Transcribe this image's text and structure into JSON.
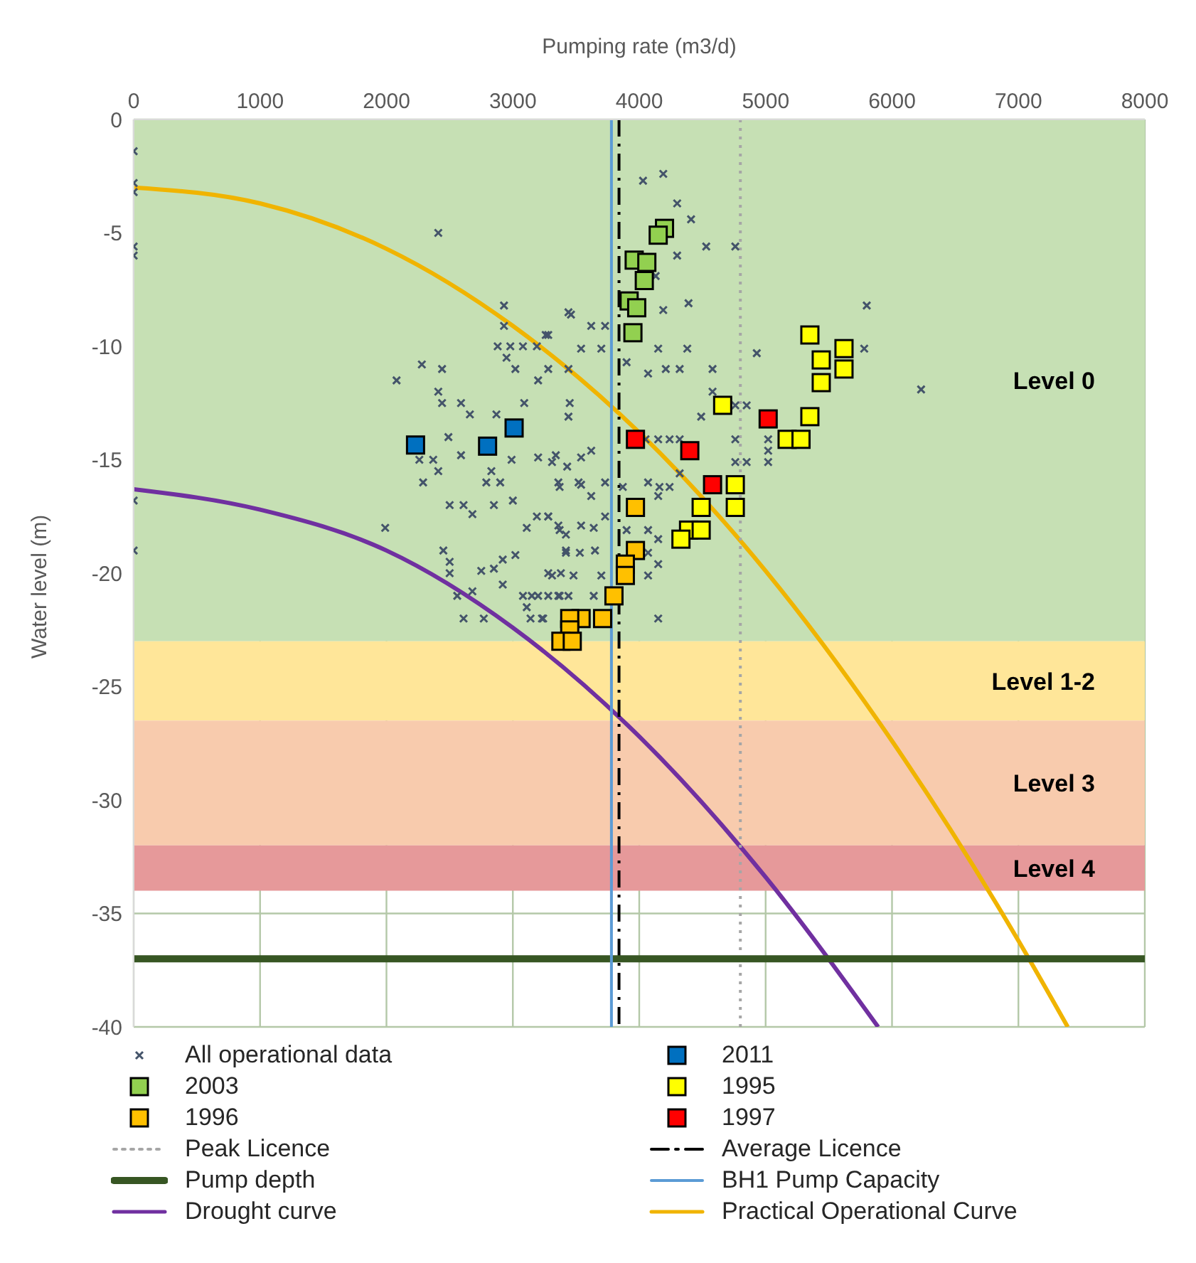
{
  "chart_data": {
    "type": "scatter",
    "xlabel": "Pumping rate (m3/d)",
    "ylabel": "Water level (m)",
    "xlim": [
      0,
      8000
    ],
    "xticks": [
      0,
      1000,
      2000,
      3000,
      4000,
      5000,
      6000,
      7000,
      8000
    ],
    "ylim": [
      -40,
      0
    ],
    "yticks": [
      0,
      -5,
      -10,
      -15,
      -20,
      -25,
      -30,
      -35,
      -40
    ],
    "grid": true,
    "legend": "bottom",
    "bands": [
      {
        "axis": "y",
        "from": 0,
        "to": -23,
        "label": "Level 0",
        "color": "#c6e0b4"
      },
      {
        "axis": "y",
        "from": -23,
        "to": -26.5,
        "label": "Level 1-2",
        "color": "#ffe699"
      },
      {
        "axis": "y",
        "from": -26.5,
        "to": -32,
        "label": "Level 3",
        "color": "#f8cbad"
      },
      {
        "axis": "y",
        "from": -32,
        "to": -34,
        "label": "Level 4",
        "color": "#e6999a"
      }
    ],
    "ref_lines": [
      {
        "axis": "x",
        "value": 4800,
        "label": "Peak Licence",
        "color": "#a6a6a6",
        "line_style": "dotted"
      },
      {
        "axis": "x",
        "value": 3840,
        "label": "Average Licence",
        "color": "#000000",
        "line_style": "dashed"
      },
      {
        "axis": "y",
        "value": -37,
        "label": "Pump depth",
        "color": "#375623",
        "line_style": "solid"
      },
      {
        "axis": "x",
        "value": 3780,
        "label": "BH1 Pump Capacity",
        "color": "#5b9bd5",
        "line_style": "solid"
      }
    ],
    "series": [
      {
        "name": "All operational data",
        "marker": "cross",
        "color": "#44546a",
        "x": [
          0,
          0,
          0,
          0,
          0,
          0,
          0,
          2410,
          2080,
          2280,
          2440,
          2410,
          2440,
          2590,
          2660,
          2870,
          2930,
          2930,
          2880,
          2980,
          2950,
          3020,
          3080,
          3190,
          3260,
          3200,
          3090,
          3280,
          3440,
          3440,
          2260,
          2370,
          2410,
          2290,
          2490,
          2590,
          2830,
          2790,
          2900,
          2990,
          2500,
          2610,
          2680,
          2850,
          3000,
          1990,
          2450,
          2500,
          2500,
          2750,
          2850,
          2920,
          3020,
          3110,
          3190,
          2920,
          2560,
          2680,
          2610,
          2770,
          3080,
          3150,
          3110,
          3140,
          3230,
          3280,
          3380,
          3420,
          3280,
          3360,
          3440,
          3340,
          3430,
          3360,
          3280,
          3360,
          3420,
          3440,
          3450,
          3520,
          3460,
          3280,
          3620,
          3730,
          3540,
          3700,
          3900,
          4150,
          4380,
          4390,
          4190,
          4070,
          4210,
          4320,
          4580,
          4580,
          4490,
          4760,
          4850,
          4930,
          5800,
          5780,
          5020,
          5020,
          5020,
          4760,
          4850,
          4760,
          4320,
          4150,
          4050,
          4240,
          3200,
          3310,
          3540,
          3620,
          3370,
          3540,
          3620,
          3730,
          3870,
          4070,
          4160,
          4240,
          4320,
          4150,
          3280,
          3370,
          3540,
          3640,
          3730,
          3900,
          4070,
          4150,
          3420,
          3530,
          3650,
          4070,
          4150,
          3310,
          3480,
          3700,
          4070,
          3200,
          3370,
          3640,
          3240,
          4150,
          4190,
          4300,
          4410,
          4300,
          4530,
          4130,
          4030,
          4760,
          6230
        ],
        "values": [
          -1.4,
          -2.8,
          -3.2,
          -5.6,
          -6.0,
          -16.8,
          -19.0,
          -5.0,
          -11.5,
          -10.8,
          -11.0,
          -12.0,
          -12.5,
          -12.5,
          -13.0,
          -13.0,
          -8.2,
          -9.1,
          -10.0,
          -10.0,
          -10.5,
          -11.0,
          -10.0,
          -10.0,
          -9.5,
          -11.5,
          -12.5,
          -11.0,
          -8.5,
          -11.0,
          -15.0,
          -15.0,
          -15.5,
          -16.0,
          -14.0,
          -14.8,
          -15.5,
          -16.0,
          -16.0,
          -15.0,
          -17.0,
          -17.0,
          -17.4,
          -17.0,
          -16.8,
          -18.0,
          -19.0,
          -19.5,
          -20.0,
          -19.9,
          -19.8,
          -19.4,
          -19.2,
          -18.0,
          -17.5,
          -20.5,
          -21.0,
          -20.8,
          -22.0,
          -22.0,
          -21.0,
          -21.0,
          -21.5,
          -22.0,
          -22.0,
          -20.0,
          -20.0,
          -19.0,
          -21.0,
          -21.0,
          -21.0,
          -14.8,
          -15.3,
          -16.0,
          -17.5,
          -17.9,
          -18.3,
          -13.1,
          -12.5,
          -16.0,
          -8.6,
          -9.5,
          -9.1,
          -9.1,
          -10.1,
          -10.1,
          -10.7,
          -10.1,
          -10.1,
          -8.1,
          -8.4,
          -11.2,
          -11.0,
          -11.0,
          -11.0,
          -12.0,
          -13.1,
          -12.6,
          -12.6,
          -10.3,
          -8.2,
          -10.1,
          -14.1,
          -14.6,
          -15.1,
          -14.1,
          -15.1,
          -15.1,
          -14.1,
          -14.1,
          -14.1,
          -14.1,
          -14.9,
          -15.1,
          -14.9,
          -14.6,
          -16.2,
          -16.1,
          -16.6,
          -16.0,
          -16.2,
          -16.0,
          -16.2,
          -16.2,
          -15.6,
          -16.6,
          -17.5,
          -18.1,
          -17.9,
          -18.0,
          -17.5,
          -18.1,
          -18.1,
          -18.5,
          -19.1,
          -19.1,
          -19.0,
          -19.1,
          -19.6,
          -20.1,
          -20.1,
          -20.1,
          -20.1,
          -21.0,
          -21.0,
          -21.0,
          -22.0,
          -22.0,
          -2.4,
          -3.7,
          -4.4,
          -6.0,
          -5.6,
          -6.9,
          -2.7,
          -5.6,
          -11.9
        ]
      },
      {
        "name": "2011",
        "marker": "square",
        "color": "#0070c0",
        "x": [
          2230,
          2800,
          3010
        ],
        "values": [
          -14.35,
          -14.4,
          -13.6
        ]
      },
      {
        "name": "2003",
        "marker": "square",
        "color": "#92d050",
        "x": [
          4200,
          4150,
          3960,
          4060,
          4040,
          3920,
          3980,
          3950
        ],
        "values": [
          -4.8,
          -5.1,
          -6.2,
          -6.3,
          -7.1,
          -8.0,
          -8.3,
          -9.4
        ]
      },
      {
        "name": "1995",
        "marker": "square",
        "color": "#ffff00",
        "x": [
          5350,
          5620,
          5440,
          5620,
          5440,
          4660,
          5350,
          5170,
          5280,
          4760,
          4760,
          4490,
          4390,
          4490,
          4330
        ],
        "values": [
          -9.5,
          -10.1,
          -10.6,
          -11.0,
          -11.6,
          -12.6,
          -13.1,
          -14.1,
          -14.1,
          -16.1,
          -17.1,
          -17.1,
          -18.1,
          -18.1,
          -18.5
        ]
      },
      {
        "name": "1996",
        "marker": "square",
        "color": "#ffc000",
        "x": [
          3970,
          3970,
          3890,
          3890,
          3800,
          3710,
          3540,
          3450,
          3450,
          3380,
          3470
        ],
        "values": [
          -17.1,
          -19.0,
          -19.6,
          -20.1,
          -21.0,
          -22.0,
          -22.0,
          -22.0,
          -22.5,
          -23.0,
          -23.0
        ]
      },
      {
        "name": "1997",
        "marker": "square",
        "color": "#ff0000",
        "x": [
          3970,
          4400,
          4580,
          5020
        ],
        "values": [
          -14.1,
          -14.6,
          -16.1,
          -13.2
        ]
      },
      {
        "name": "Drought curve",
        "type": "line",
        "marker": "none",
        "color": "#7030a0",
        "x": [
          0,
          1000,
          2000,
          3000,
          4000,
          5000,
          5890
        ],
        "values": [
          -16.3,
          -17.2,
          -19.0,
          -22.4,
          -27.2,
          -33.4,
          -40
        ]
      },
      {
        "name": "Practical Operational Curve",
        "type": "line",
        "marker": "none",
        "color": "#f0b400",
        "x": [
          0,
          1000,
          2000,
          3000,
          4000,
          5000,
          6000,
          7000,
          7390
        ],
        "values": [
          -3,
          -3.7,
          -5.7,
          -9.1,
          -13.8,
          -19.9,
          -27.4,
          -36.2,
          -40
        ]
      }
    ]
  }
}
